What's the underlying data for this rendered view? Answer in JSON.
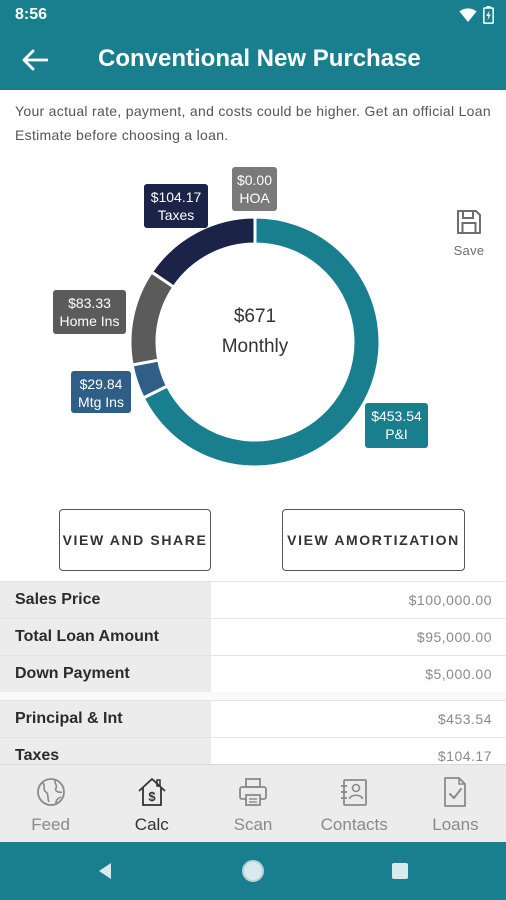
{
  "status_bar": {
    "time": "8:56"
  },
  "header": {
    "title": "Conventional New Purchase"
  },
  "disclaimer": "Your actual rate, payment, and costs could be higher. Get an official Loan Estimate before choosing a loan.",
  "chart_data": {
    "type": "pie",
    "variant": "donut",
    "center_amount": "$671",
    "center_label": "Monthly",
    "slices": [
      {
        "label": "P&I",
        "value": 453.54,
        "display": "$453.54",
        "color": "#197f8f"
      },
      {
        "label": "Mtg Ins",
        "value": 29.84,
        "display": "$29.84",
        "color": "#2f5e86"
      },
      {
        "label": "Home Ins",
        "value": 83.33,
        "display": "$83.33",
        "color": "#5b5b5b"
      },
      {
        "label": "Taxes",
        "value": 104.17,
        "display": "$104.17",
        "color": "#1c2348"
      },
      {
        "label": "HOA",
        "value": 0.0,
        "display": "$0.00",
        "color": "#7a7a7a"
      }
    ]
  },
  "save": {
    "label": "Save"
  },
  "buttons": {
    "view_share": "VIEW AND SHARE",
    "view_amortization": "VIEW AMORTIZATION"
  },
  "loan_rows": [
    {
      "label": "Sales Price",
      "value": "$100,000.00"
    },
    {
      "label": "Total Loan Amount",
      "value": "$95,000.00"
    },
    {
      "label": "Down Payment",
      "value": "$5,000.00"
    }
  ],
  "payment_rows": [
    {
      "label": "Principal & Int",
      "value": "$453.54"
    },
    {
      "label": "Taxes",
      "value": "$104.17"
    }
  ],
  "nav": [
    {
      "label": "Feed",
      "icon": "globe-icon"
    },
    {
      "label": "Calc",
      "icon": "calc-house-icon",
      "active": true
    },
    {
      "label": "Scan",
      "icon": "printer-icon"
    },
    {
      "label": "Contacts",
      "icon": "contacts-icon"
    },
    {
      "label": "Loans",
      "icon": "document-check-icon"
    }
  ],
  "colors": {
    "primary": "#197f8f",
    "nav_bg": "#ececec"
  }
}
